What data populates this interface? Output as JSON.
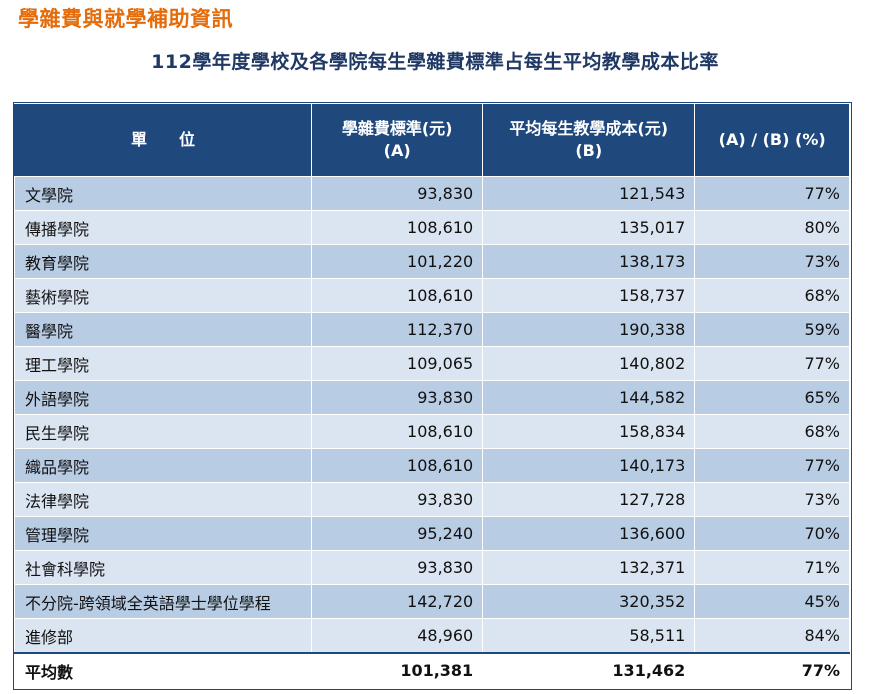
{
  "page_title": "學雜費與就學補助資訊",
  "table_title": "112學年度學校及各學院每生學雜費標準占每生平均教學成本比率",
  "headers": {
    "unit": "單　　位",
    "fee_line1": "學雜費標準(元)",
    "fee_line2": "(A)",
    "cost_line1": "平均每生教學成本(元)",
    "cost_line2": "(B)",
    "ratio": "(A) / (B) (%)"
  },
  "rows": [
    {
      "unit": "文學院",
      "fee": "93,830",
      "cost": "121,543",
      "ratio": "77%"
    },
    {
      "unit": "傳播學院",
      "fee": "108,610",
      "cost": "135,017",
      "ratio": "80%"
    },
    {
      "unit": "教育學院",
      "fee": "101,220",
      "cost": "138,173",
      "ratio": "73%"
    },
    {
      "unit": "藝術學院",
      "fee": "108,610",
      "cost": "158,737",
      "ratio": "68%"
    },
    {
      "unit": "醫學院",
      "fee": "112,370",
      "cost": "190,338",
      "ratio": "59%"
    },
    {
      "unit": "理工學院",
      "fee": "109,065",
      "cost": "140,802",
      "ratio": "77%"
    },
    {
      "unit": "外語學院",
      "fee": "93,830",
      "cost": "144,582",
      "ratio": "65%"
    },
    {
      "unit": "民生學院",
      "fee": "108,610",
      "cost": "158,834",
      "ratio": "68%"
    },
    {
      "unit": "織品學院",
      "fee": "108,610",
      "cost": "140,173",
      "ratio": "77%"
    },
    {
      "unit": "法律學院",
      "fee": "93,830",
      "cost": "127,728",
      "ratio": "73%"
    },
    {
      "unit": "管理學院",
      "fee": "95,240",
      "cost": "136,600",
      "ratio": "70%"
    },
    {
      "unit": "社會科學院",
      "fee": "93,830",
      "cost": "132,371",
      "ratio": "71%"
    },
    {
      "unit": "不分院-跨領域全英語學士學位學程",
      "fee": "142,720",
      "cost": "320,352",
      "ratio": "45%"
    },
    {
      "unit": "進修部",
      "fee": "48,960",
      "cost": "58,511",
      "ratio": "84%"
    }
  ],
  "average": {
    "unit": "平均數",
    "fee": "101,381",
    "cost": "131,462",
    "ratio": "77%"
  },
  "colors": {
    "title_orange": "#e46c0a",
    "subtitle_navy": "#1f3864",
    "header_bg": "#1f497d",
    "row_dark": "#b8cce4",
    "row_light": "#dbe5f1"
  }
}
